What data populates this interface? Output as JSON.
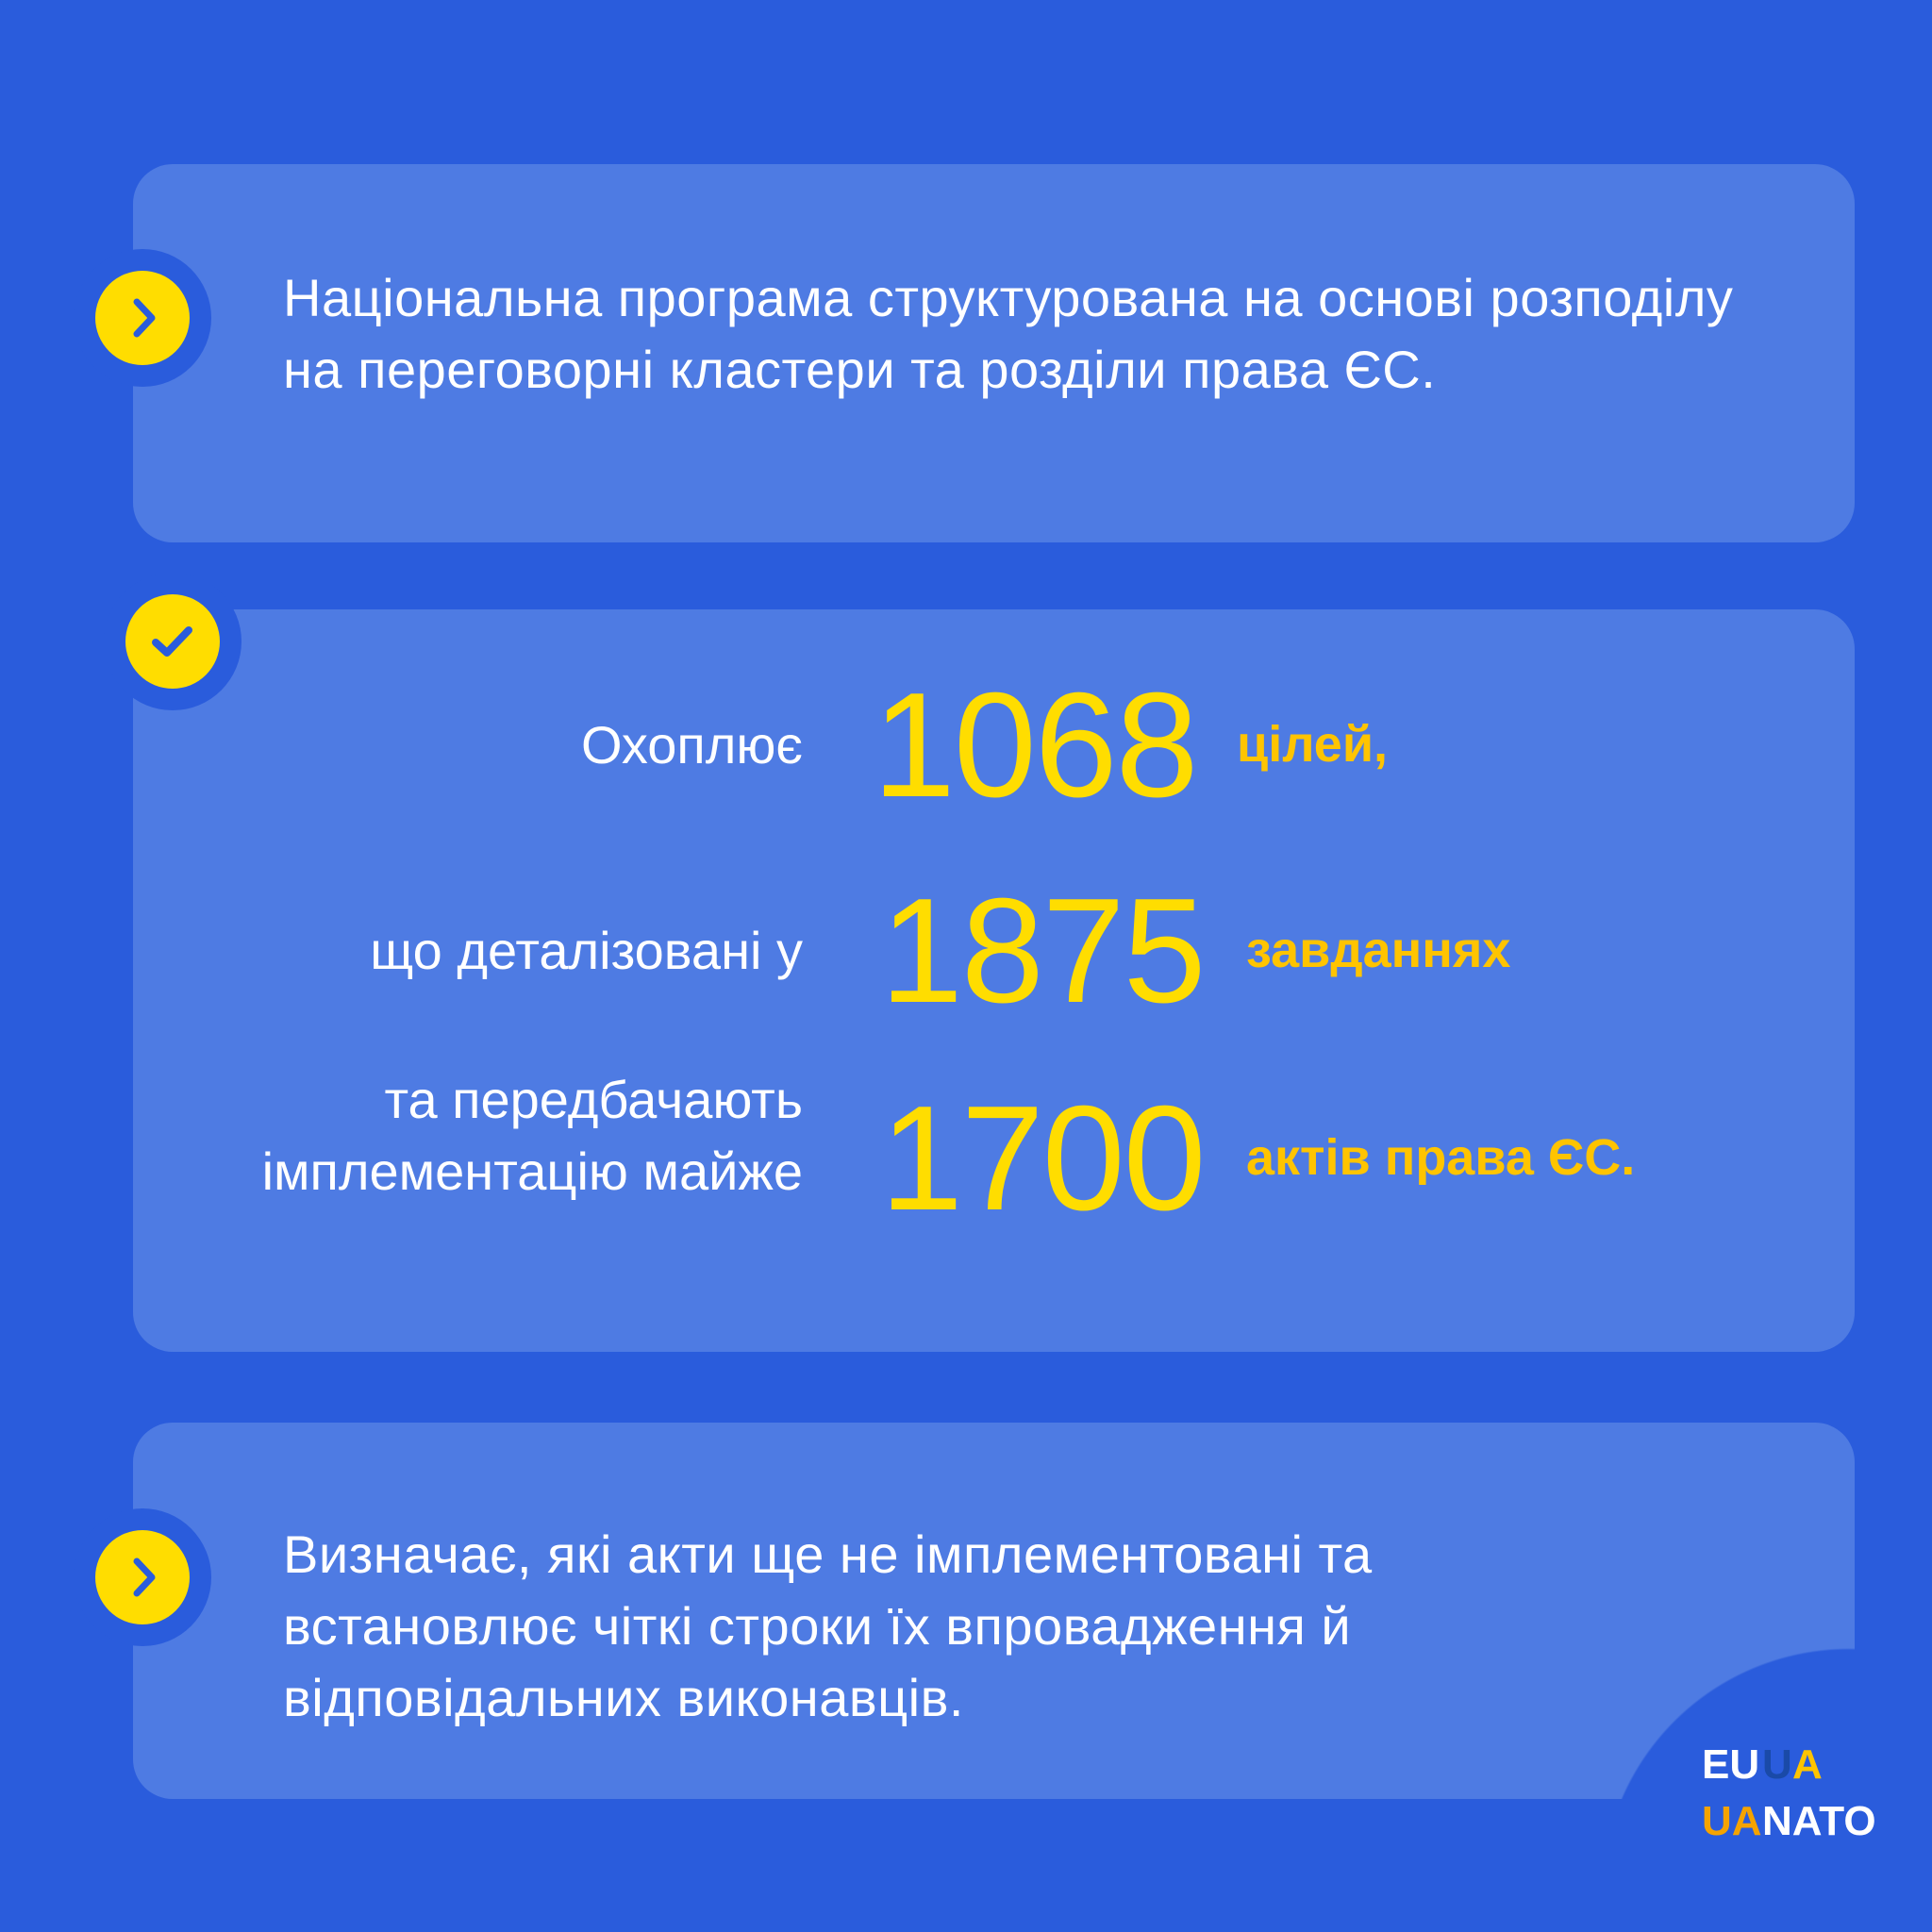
{
  "colors": {
    "background": "#2a5cdc",
    "card": "#4e7be3",
    "accent": "#ffdd00"
  },
  "card1": {
    "icon": "chevron-right-icon",
    "text": "Національна програма структурована на основі розподілу на переговорні кластери та розділи права ЄС."
  },
  "card2": {
    "icon": "checkmark-icon",
    "rows": [
      {
        "label": "Охоплює",
        "number": "1068",
        "unit": "цілей,"
      },
      {
        "label": "що деталізовані у",
        "number": "1875",
        "unit": "завданнях"
      },
      {
        "label": "та передбачають імплементацію майже",
        "number": "1700",
        "unit": "актів права ЄС."
      }
    ]
  },
  "card3": {
    "icon": "chevron-right-icon",
    "text": "Визначає, які акти ще не імплементовані та встановлює чіткі строки їх впровадження й відповідальних виконавців."
  },
  "logo": {
    "text": "EU UA UA NATO"
  }
}
